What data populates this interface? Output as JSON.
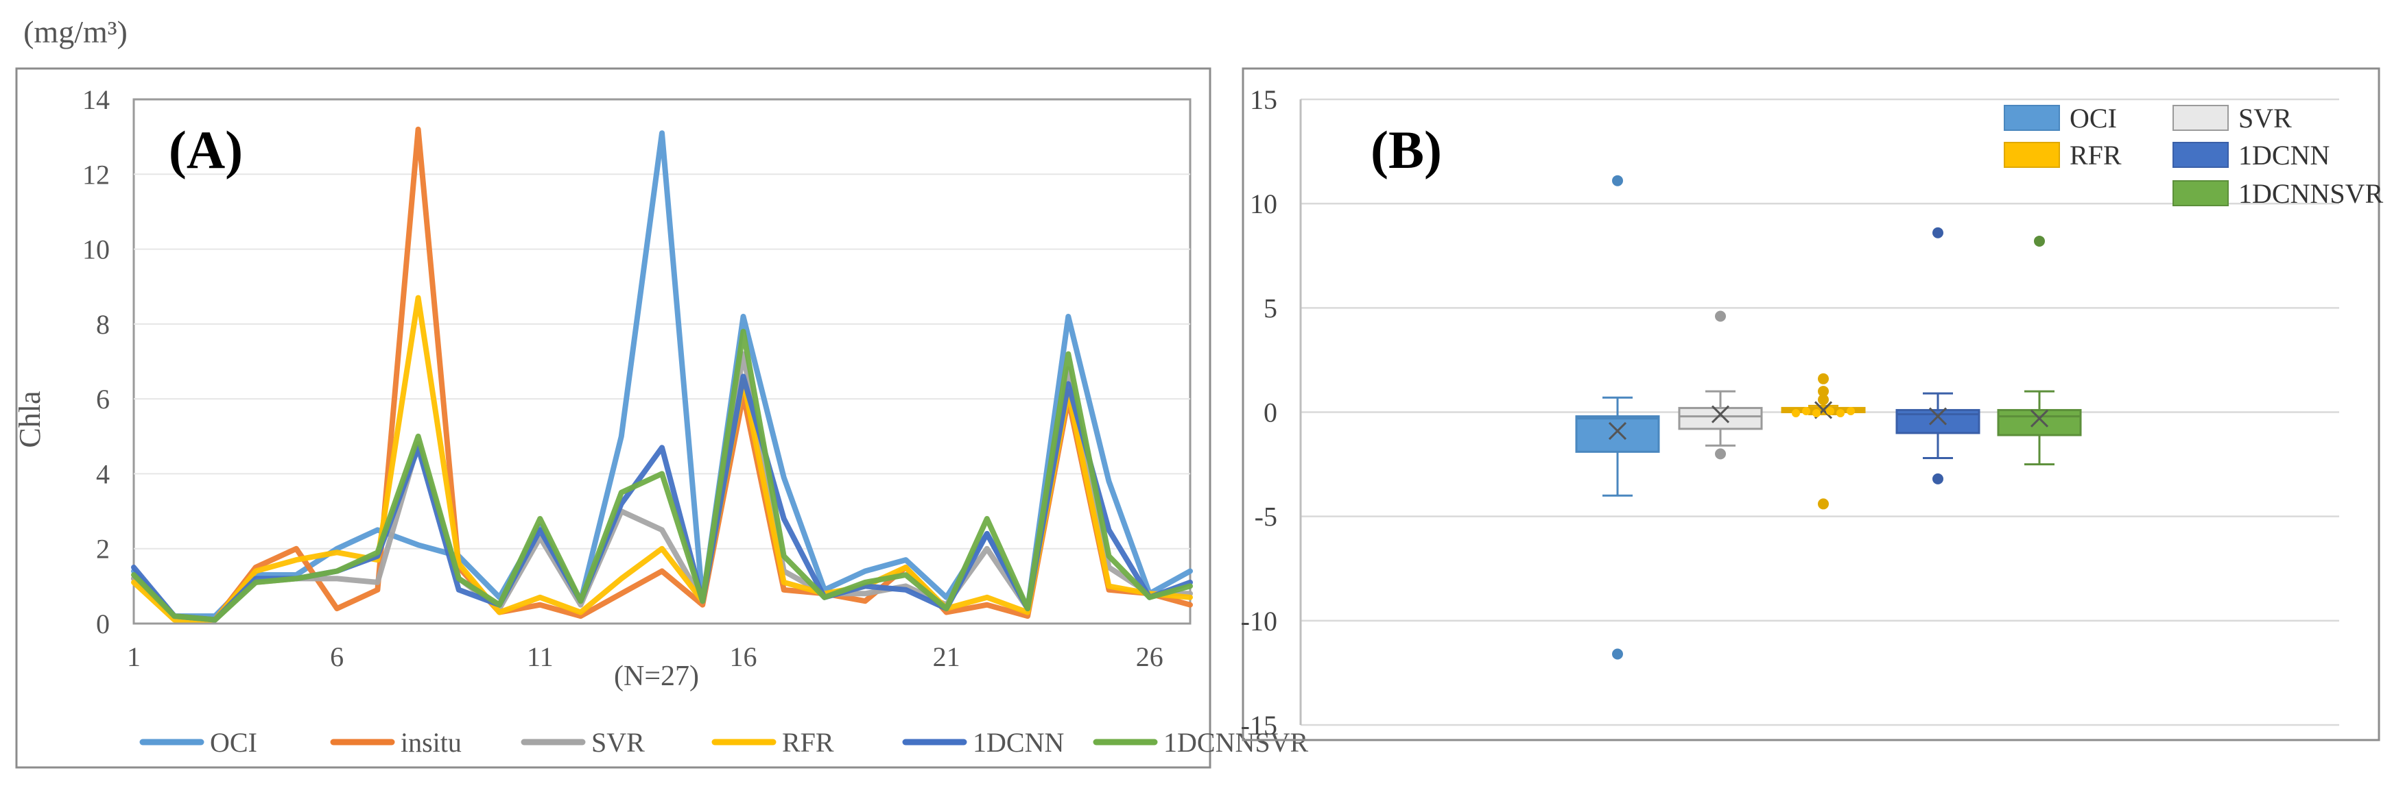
{
  "chart_data": [
    {
      "panel_label": "(A)",
      "type": "line",
      "unit_label": "(mg/m³)",
      "ylabel": "Chla",
      "xlabel": "(N=27)",
      "ylim": [
        0,
        14
      ],
      "yticks": [
        "0",
        "2",
        "4",
        "6",
        "8",
        "10",
        "12",
        "14"
      ],
      "xlim": [
        1,
        27
      ],
      "xticks": [
        "1",
        "6",
        "11",
        "16",
        "21",
        "26"
      ],
      "legend_position": "bottom",
      "x": [
        1,
        2,
        3,
        4,
        5,
        6,
        7,
        8,
        9,
        10,
        11,
        12,
        13,
        14,
        15,
        16,
        17,
        18,
        19,
        20,
        21,
        22,
        23,
        24,
        25,
        26,
        27
      ],
      "series": [
        {
          "name": "OCI",
          "color": "#5b9bd5",
          "values": [
            1.4,
            0.2,
            0.2,
            1.3,
            1.3,
            2.0,
            2.5,
            2.1,
            1.8,
            0.7,
            2.6,
            0.6,
            5.0,
            13.1,
            0.6,
            8.2,
            3.9,
            0.9,
            1.4,
            1.7,
            0.7,
            2.4,
            0.4,
            8.2,
            3.8,
            0.8,
            1.4
          ]
        },
        {
          "name": "insitu",
          "color": "#ed7d31",
          "values": [
            1.2,
            0.2,
            0.1,
            1.5,
            2.0,
            0.4,
            0.9,
            13.2,
            1.5,
            0.3,
            0.5,
            0.2,
            0.8,
            1.4,
            0.5,
            6.1,
            0.9,
            0.8,
            0.6,
            1.5,
            0.3,
            0.5,
            0.2,
            6.0,
            0.9,
            0.8,
            0.5
          ]
        },
        {
          "name": "SVR",
          "color": "#a5a5a5",
          "values": [
            1.2,
            0.2,
            0.1,
            1.1,
            1.2,
            1.2,
            1.1,
            4.8,
            1.2,
            0.4,
            2.3,
            0.5,
            3.0,
            2.5,
            0.6,
            7.2,
            1.4,
            0.8,
            0.8,
            1.0,
            0.5,
            2.0,
            0.4,
            6.8,
            1.5,
            0.8,
            0.8
          ]
        },
        {
          "name": "RFR",
          "color": "#ffc000",
          "values": [
            1.1,
            0.1,
            0.1,
            1.4,
            1.7,
            1.9,
            1.7,
            8.7,
            1.6,
            0.3,
            0.7,
            0.3,
            1.2,
            2.0,
            0.6,
            6.5,
            1.1,
            0.8,
            1.0,
            1.5,
            0.4,
            0.7,
            0.3,
            6.2,
            1.0,
            0.8,
            0.7
          ]
        },
        {
          "name": "1DCNN",
          "color": "#4472c4",
          "values": [
            1.5,
            0.2,
            0.1,
            1.2,
            1.2,
            1.4,
            1.8,
            4.7,
            0.9,
            0.5,
            2.5,
            0.6,
            3.2,
            4.7,
            0.6,
            6.6,
            2.8,
            0.7,
            1.0,
            0.9,
            0.4,
            2.4,
            0.4,
            6.4,
            2.5,
            0.7,
            1.1
          ]
        },
        {
          "name": "1DCNNSVR",
          "color": "#70ad47",
          "values": [
            1.3,
            0.2,
            0.1,
            1.1,
            1.2,
            1.4,
            1.9,
            5.0,
            1.2,
            0.5,
            2.8,
            0.6,
            3.5,
            4.0,
            0.6,
            7.8,
            1.8,
            0.7,
            1.1,
            1.3,
            0.4,
            2.8,
            0.4,
            7.2,
            1.8,
            0.7,
            1.0
          ]
        }
      ]
    },
    {
      "panel_label": "(B)",
      "type": "box",
      "ylim": [
        -15,
        15
      ],
      "yticks": [
        "15",
        "10",
        "5",
        "0",
        "-5",
        "-10",
        "-15"
      ],
      "legend_position": "top-right",
      "series": [
        {
          "name": "OCI",
          "color": "#5b9bd5",
          "edge": "#4a87bf",
          "min": -4.0,
          "q1": -1.9,
          "median": -0.3,
          "q3": -0.2,
          "max": 0.7,
          "mean": -0.9,
          "outliers": [
            11.1,
            -11.6
          ]
        },
        {
          "name": "SVR",
          "color": "#e8e8e8",
          "edge": "#9a9a9a",
          "min": -1.6,
          "q1": -0.8,
          "median": -0.2,
          "q3": 0.2,
          "max": 1.0,
          "mean": -0.1,
          "outliers": [
            4.6,
            -2.0
          ]
        },
        {
          "name": "RFR",
          "color": "#ffc000",
          "edge": "#e0a800",
          "min": -0.1,
          "q1": 0.0,
          "median": 0.1,
          "q3": 0.2,
          "max": 0.3,
          "mean": 0.1,
          "outliers": [
            1.6,
            1.0,
            0.6,
            -4.4
          ]
        },
        {
          "name": "1DCNN",
          "color": "#4472c4",
          "edge": "#3a5fa8",
          "min": -2.2,
          "q1": -1.0,
          "median": -0.1,
          "q3": 0.1,
          "max": 0.9,
          "mean": -0.2,
          "outliers": [
            8.6,
            -3.2
          ]
        },
        {
          "name": "1DCNNSVR",
          "color": "#70ad47",
          "edge": "#5c8f3a",
          "min": -2.5,
          "q1": -1.1,
          "median": -0.2,
          "q3": 0.1,
          "max": 1.0,
          "mean": -0.3,
          "outliers": [
            8.2
          ]
        }
      ]
    }
  ]
}
